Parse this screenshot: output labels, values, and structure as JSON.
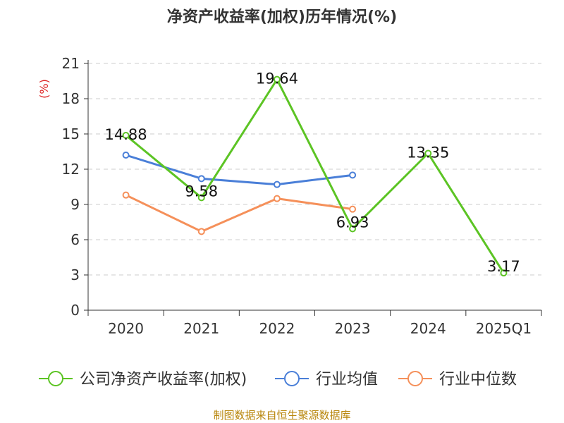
{
  "chart_data": {
    "type": "line",
    "title": "净资产收益率(加权)历年情况(%)",
    "ylabel": "(%)",
    "xlabel": "",
    "ylim": [
      0,
      21
    ],
    "yticks": [
      0,
      3,
      6,
      9,
      12,
      15,
      18,
      21
    ],
    "grid": true,
    "legend_position": "bottom",
    "categories": [
      "2020",
      "2021",
      "2022",
      "2023",
      "2024",
      "2025Q1"
    ],
    "series": [
      {
        "name": "公司净资产收益率(加权)",
        "color": "#5cc424",
        "values": [
          14.88,
          9.58,
          19.64,
          6.93,
          13.35,
          3.17
        ],
        "labels": true
      },
      {
        "name": "行业均值",
        "color": "#4a7fd8",
        "values": [
          13.2,
          11.2,
          10.7,
          11.5,
          null,
          null
        ],
        "labels": false
      },
      {
        "name": "行业中位数",
        "color": "#f5905a",
        "values": [
          9.8,
          6.7,
          9.5,
          8.6,
          null,
          null
        ],
        "labels": false
      }
    ]
  },
  "source_text": "制图数据来自恒生聚源数据库"
}
